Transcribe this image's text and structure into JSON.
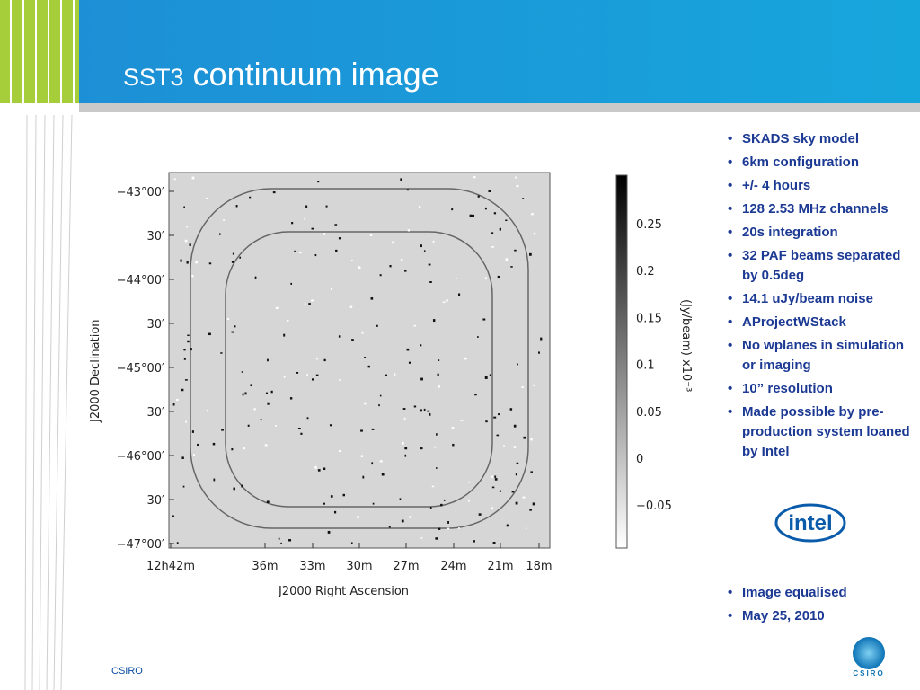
{
  "header": {
    "title_prefix": "SST3",
    "title": "continuum image"
  },
  "figure": {
    "dec_ticks": [
      "−43°00′",
      "30′",
      "−44°00′",
      "30′",
      "−45°00′",
      "30′",
      "−46°00′",
      "30′",
      "−47°00′"
    ],
    "ra_ticks": [
      "12h42m",
      "36m",
      "33m",
      "30m",
      "27m",
      "24m",
      "21m",
      "18m"
    ],
    "x_label": "J2000 Right Ascension",
    "y_label": "J2000 Declination",
    "colorbar_ticks": [
      "0.25",
      "0.2",
      "0.15",
      "0.1",
      "0.05",
      "0",
      "−0.05"
    ],
    "colorbar_label": "(Jy/beam)  x10⁻³"
  },
  "bullets": [
    "SKADS sky model",
    "6km configuration",
    "+/- 4 hours",
    "128 2.53 MHz channels",
    "20s integration",
    "32 PAF beams separated by 0.5deg",
    "14.1 uJy/beam noise",
    "AProjectWStack",
    "No wplanes in simulation or imaging",
    "10” resolution",
    "Made possible by pre-production system loaned by Intel"
  ],
  "logo_text": "intel",
  "bullets_2": [
    "Image equalised",
    "May 25, 2010"
  ],
  "footer": "CSIRO",
  "footer_logo": "CSIRO"
}
